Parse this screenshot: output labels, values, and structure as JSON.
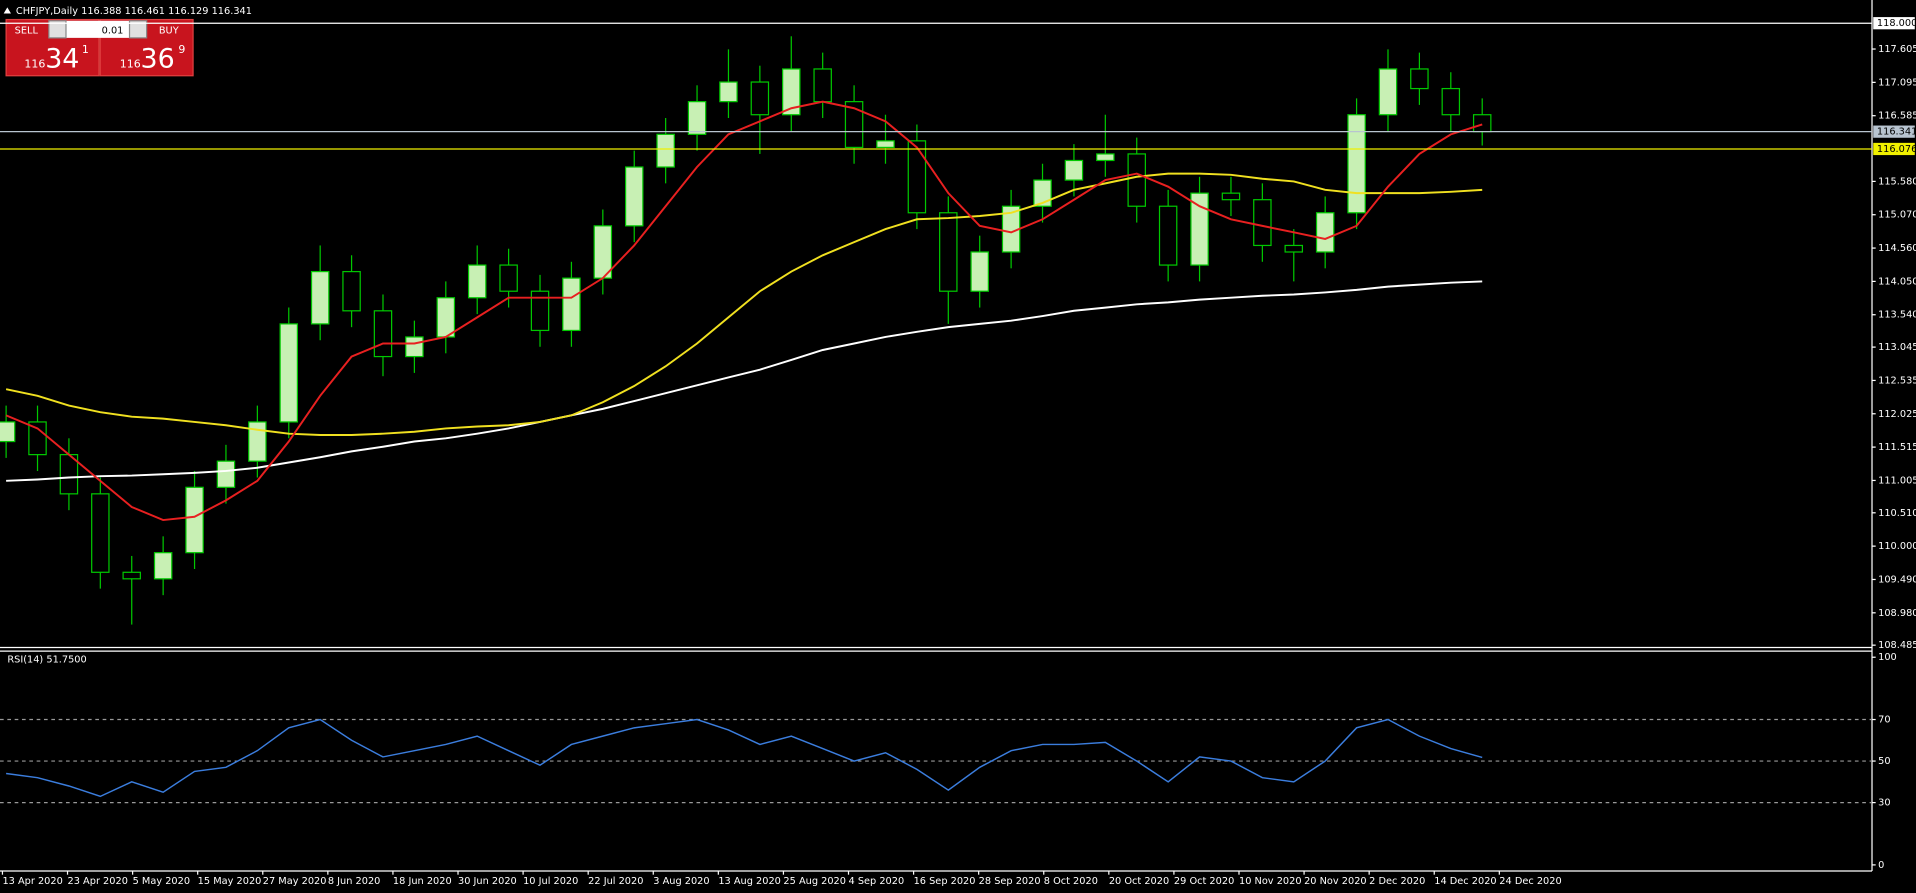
{
  "header": {
    "symbol_info": "CHFJPY,Daily 116.388 116.461 116.129 116.341"
  },
  "trade_panel": {
    "sell_label": "SELL",
    "buy_label": "BUY",
    "lot": "0.01",
    "sell": {
      "big_figure": "116",
      "pips": "34",
      "fraction": "1"
    },
    "buy": {
      "big_figure": "116",
      "pips": "36",
      "fraction": "9"
    }
  },
  "chart_data": {
    "type": "candlestick",
    "categories": [
      "13 Apr 2020",
      "23 Apr 2020",
      "5 May 2020",
      "15 May 2020",
      "27 May 2020",
      "8 Jun 2020",
      "18 Jun 2020",
      "30 Jun 2020",
      "10 Jul 2020",
      "22 Jul 2020",
      "3 Aug 2020",
      "13 Aug 2020",
      "25 Aug 2020",
      "4 Sep 2020",
      "16 Sep 2020",
      "28 Sep 2020",
      "8 Oct 2020",
      "20 Oct 2020",
      "29 Oct 2020",
      "10 Nov 2020",
      "20 Nov 2020",
      "2 Dec 2020",
      "14 Dec 2020",
      "24 Dec 2020"
    ],
    "candles": [
      {
        "o": 111.6,
        "h": 112.15,
        "l": 111.35,
        "c": 111.9
      },
      {
        "o": 111.9,
        "h": 112.15,
        "l": 111.15,
        "c": 111.4
      },
      {
        "o": 111.4,
        "h": 111.65,
        "l": 110.55,
        "c": 110.8
      },
      {
        "o": 110.8,
        "h": 111.05,
        "l": 109.35,
        "c": 109.6
      },
      {
        "o": 109.6,
        "h": 109.85,
        "l": 108.8,
        "c": 109.5
      },
      {
        "o": 109.5,
        "h": 110.15,
        "l": 109.25,
        "c": 109.9
      },
      {
        "o": 109.9,
        "h": 111.15,
        "l": 109.65,
        "c": 110.9
      },
      {
        "o": 110.9,
        "h": 111.55,
        "l": 110.65,
        "c": 111.3
      },
      {
        "o": 111.3,
        "h": 112.15,
        "l": 111.05,
        "c": 111.9
      },
      {
        "o": 111.9,
        "h": 113.65,
        "l": 111.65,
        "c": 113.4
      },
      {
        "o": 113.4,
        "h": 114.6,
        "l": 113.15,
        "c": 114.2
      },
      {
        "o": 114.2,
        "h": 114.45,
        "l": 113.35,
        "c": 113.6
      },
      {
        "o": 113.6,
        "h": 113.85,
        "l": 112.6,
        "c": 112.9
      },
      {
        "o": 112.9,
        "h": 113.45,
        "l": 112.65,
        "c": 113.2
      },
      {
        "o": 113.2,
        "h": 114.05,
        "l": 112.95,
        "c": 113.8
      },
      {
        "o": 113.8,
        "h": 114.6,
        "l": 113.55,
        "c": 114.3
      },
      {
        "o": 114.3,
        "h": 114.55,
        "l": 113.65,
        "c": 113.9
      },
      {
        "o": 113.9,
        "h": 114.15,
        "l": 113.05,
        "c": 113.3
      },
      {
        "o": 113.3,
        "h": 114.35,
        "l": 113.05,
        "c": 114.1
      },
      {
        "o": 114.1,
        "h": 115.15,
        "l": 113.85,
        "c": 114.9
      },
      {
        "o": 114.9,
        "h": 116.05,
        "l": 114.65,
        "c": 115.8
      },
      {
        "o": 115.8,
        "h": 116.55,
        "l": 115.55,
        "c": 116.3
      },
      {
        "o": 116.3,
        "h": 117.05,
        "l": 116.05,
        "c": 116.8
      },
      {
        "o": 116.8,
        "h": 117.6,
        "l": 116.55,
        "c": 117.1
      },
      {
        "o": 117.1,
        "h": 117.35,
        "l": 116.0,
        "c": 116.6
      },
      {
        "o": 116.6,
        "h": 117.8,
        "l": 116.35,
        "c": 117.3
      },
      {
        "o": 117.3,
        "h": 117.55,
        "l": 116.55,
        "c": 116.8
      },
      {
        "o": 116.8,
        "h": 117.05,
        "l": 115.85,
        "c": 116.1
      },
      {
        "o": 116.1,
        "h": 116.6,
        "l": 115.85,
        "c": 116.2
      },
      {
        "o": 116.2,
        "h": 116.45,
        "l": 114.85,
        "c": 115.1
      },
      {
        "o": 115.1,
        "h": 115.35,
        "l": 113.4,
        "c": 113.9
      },
      {
        "o": 113.9,
        "h": 114.75,
        "l": 113.65,
        "c": 114.5
      },
      {
        "o": 114.5,
        "h": 115.45,
        "l": 114.25,
        "c": 115.2
      },
      {
        "o": 115.2,
        "h": 115.85,
        "l": 114.95,
        "c": 115.6
      },
      {
        "o": 115.6,
        "h": 116.15,
        "l": 115.35,
        "c": 115.9
      },
      {
        "o": 115.9,
        "h": 116.6,
        "l": 115.65,
        "c": 116.0
      },
      {
        "o": 116.0,
        "h": 116.25,
        "l": 114.95,
        "c": 115.2
      },
      {
        "o": 115.2,
        "h": 115.45,
        "l": 114.05,
        "c": 114.3
      },
      {
        "o": 114.3,
        "h": 115.65,
        "l": 114.05,
        "c": 115.4
      },
      {
        "o": 115.4,
        "h": 115.65,
        "l": 115.05,
        "c": 115.3
      },
      {
        "o": 115.3,
        "h": 115.55,
        "l": 114.35,
        "c": 114.6
      },
      {
        "o": 114.6,
        "h": 114.85,
        "l": 114.05,
        "c": 114.5
      },
      {
        "o": 114.5,
        "h": 115.35,
        "l": 114.25,
        "c": 115.1
      },
      {
        "o": 115.1,
        "h": 116.85,
        "l": 114.85,
        "c": 116.6
      },
      {
        "o": 116.6,
        "h": 117.6,
        "l": 116.35,
        "c": 117.3
      },
      {
        "o": 117.3,
        "h": 117.55,
        "l": 116.75,
        "c": 117.0
      },
      {
        "o": 117.0,
        "h": 117.25,
        "l": 116.35,
        "c": 116.6
      },
      {
        "o": 116.6,
        "h": 116.85,
        "l": 116.129,
        "c": 116.341
      }
    ],
    "up_color": "#c8f0b4",
    "down_color": "#000000",
    "candle_outline": "#00c800",
    "moving_averages": [
      {
        "color": "#ffffff",
        "values": [
          111.0,
          111.02,
          111.05,
          111.07,
          111.08,
          111.1,
          111.12,
          111.15,
          111.2,
          111.28,
          111.36,
          111.45,
          111.52,
          111.6,
          111.65,
          111.72,
          111.8,
          111.9,
          112.0,
          112.1,
          112.22,
          112.34,
          112.46,
          112.58,
          112.7,
          112.85,
          113.0,
          113.1,
          113.2,
          113.28,
          113.35,
          113.4,
          113.45,
          113.52,
          113.6,
          113.65,
          113.7,
          113.73,
          113.77,
          113.8,
          113.83,
          113.85,
          113.88,
          113.92,
          113.97,
          114.0,
          114.03,
          114.05
        ]
      },
      {
        "color": "#f0e020",
        "values": [
          112.4,
          112.3,
          112.15,
          112.05,
          111.98,
          111.95,
          111.9,
          111.85,
          111.78,
          111.72,
          111.7,
          111.7,
          111.72,
          111.75,
          111.8,
          111.83,
          111.85,
          111.9,
          112.0,
          112.2,
          112.45,
          112.75,
          113.1,
          113.5,
          113.9,
          114.2,
          114.45,
          114.65,
          114.85,
          115.0,
          115.02,
          115.05,
          115.1,
          115.25,
          115.45,
          115.55,
          115.65,
          115.7,
          115.7,
          115.68,
          115.62,
          115.58,
          115.45,
          115.4,
          115.4,
          115.4,
          115.42,
          115.45
        ]
      },
      {
        "color": "#e82020",
        "values": [
          112.0,
          111.8,
          111.4,
          111.0,
          110.6,
          110.4,
          110.45,
          110.7,
          111.0,
          111.6,
          112.3,
          112.9,
          113.1,
          113.1,
          113.2,
          113.5,
          113.8,
          113.8,
          113.8,
          114.1,
          114.6,
          115.2,
          115.8,
          116.3,
          116.5,
          116.7,
          116.8,
          116.7,
          116.5,
          116.1,
          115.4,
          114.9,
          114.8,
          115.0,
          115.3,
          115.6,
          115.7,
          115.5,
          115.2,
          115.0,
          114.9,
          114.8,
          114.7,
          114.9,
          115.5,
          116.0,
          116.3,
          116.45
        ]
      }
    ],
    "ylim": [
      108.45,
      118.355
    ],
    "yticks": [
      {
        "value": 117.605,
        "label": "117.605"
      },
      {
        "value": 117.095,
        "label": "117.095"
      },
      {
        "value": 116.585,
        "label": "116.585"
      },
      {
        "value": 115.58,
        "label": "115.580"
      },
      {
        "value": 115.07,
        "label": "115.070"
      },
      {
        "value": 114.56,
        "label": "114.560"
      },
      {
        "value": 114.05,
        "label": "114.050"
      },
      {
        "value": 113.54,
        "label": "113.540"
      },
      {
        "value": 113.045,
        "label": "113.045"
      },
      {
        "value": 112.535,
        "label": "112.535"
      },
      {
        "value": 112.025,
        "label": "112.025"
      },
      {
        "value": 111.515,
        "label": "111.515"
      },
      {
        "value": 111.005,
        "label": "111.005"
      },
      {
        "value": 110.51,
        "label": "110.510"
      },
      {
        "value": 110.0,
        "label": "110.000"
      },
      {
        "value": 109.49,
        "label": "109.490"
      },
      {
        "value": 108.98,
        "label": "108.980"
      },
      {
        "value": 108.485,
        "label": "108.485"
      }
    ],
    "levels": [
      {
        "value": 118.0,
        "label": "118.000",
        "color": "#ffffff"
      },
      {
        "value": 116.341,
        "label": "116.341",
        "color": "#b8c4d0"
      },
      {
        "value": 116.076,
        "label": "116.076",
        "color": "#f0f000"
      }
    ],
    "indicator": {
      "title": "RSI(14) 51.7500",
      "color": "#3b7ddd",
      "values": [
        44,
        42,
        38,
        33,
        40,
        35,
        45,
        47,
        55,
        66,
        70,
        60,
        52,
        55,
        58,
        62,
        55,
        48,
        58,
        62,
        66,
        68,
        70,
        65,
        58,
        62,
        56,
        50,
        54,
        46,
        36,
        47,
        55,
        58,
        58,
        59,
        50,
        40,
        52,
        50,
        42,
        40,
        50,
        66,
        70,
        62,
        56,
        51.75
      ],
      "ylim": [
        0,
        100
      ],
      "yticks": [
        100,
        70,
        50,
        30,
        0
      ],
      "levels": [
        70,
        50,
        30
      ]
    }
  }
}
